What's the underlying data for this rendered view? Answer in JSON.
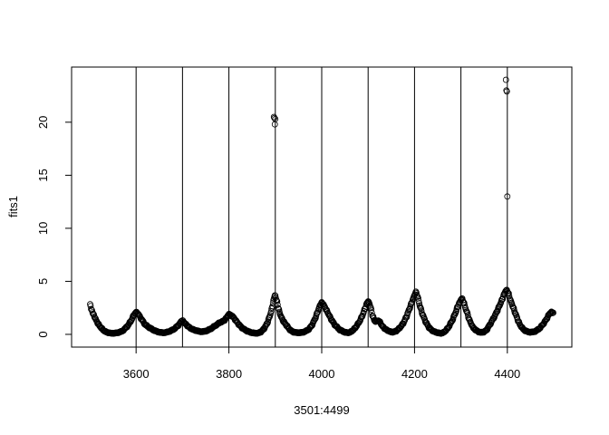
{
  "chart_data": {
    "type": "scatter",
    "title": "",
    "xlabel": "3501:4499",
    "ylabel": "fits1",
    "xlim": [
      3461,
      4539
    ],
    "ylim": [
      -1.2,
      25.2
    ],
    "x_ticks": [
      3600,
      3800,
      4000,
      4200,
      4400
    ],
    "y_ticks": [
      0,
      5,
      10,
      15,
      20
    ],
    "grid": false,
    "legend": "none",
    "point_color": "#000000",
    "marker": "open-circle",
    "vertical_lines": [
      3600,
      3700,
      3800,
      3900,
      4000,
      4100,
      4200,
      4300,
      4400
    ],
    "profile_knots": [
      [
        3501,
        2.8
      ],
      [
        3504,
        2.3
      ],
      [
        3508,
        1.9
      ],
      [
        3512,
        1.5
      ],
      [
        3518,
        1.0
      ],
      [
        3525,
        0.6
      ],
      [
        3532,
        0.3
      ],
      [
        3540,
        0.15
      ],
      [
        3550,
        0.1
      ],
      [
        3560,
        0.15
      ],
      [
        3570,
        0.3
      ],
      [
        3580,
        0.7
      ],
      [
        3588,
        1.2
      ],
      [
        3595,
        1.8
      ],
      [
        3600,
        2.1
      ],
      [
        3605,
        1.9
      ],
      [
        3612,
        1.4
      ],
      [
        3620,
        0.9
      ],
      [
        3630,
        0.6
      ],
      [
        3640,
        0.35
      ],
      [
        3650,
        0.2
      ],
      [
        3660,
        0.15
      ],
      [
        3670,
        0.25
      ],
      [
        3680,
        0.45
      ],
      [
        3690,
        0.8
      ],
      [
        3697,
        1.2
      ],
      [
        3700,
        1.3
      ],
      [
        3705,
        1.05
      ],
      [
        3712,
        0.75
      ],
      [
        3720,
        0.5
      ],
      [
        3730,
        0.35
      ],
      [
        3740,
        0.25
      ],
      [
        3750,
        0.3
      ],
      [
        3760,
        0.5
      ],
      [
        3770,
        0.8
      ],
      [
        3780,
        1.1
      ],
      [
        3790,
        1.3
      ],
      [
        3795,
        1.6
      ],
      [
        3800,
        1.9
      ],
      [
        3808,
        1.7
      ],
      [
        3815,
        1.3
      ],
      [
        3822,
        0.9
      ],
      [
        3830,
        0.55
      ],
      [
        3840,
        0.3
      ],
      [
        3850,
        0.15
      ],
      [
        3860,
        0.1
      ],
      [
        3868,
        0.2
      ],
      [
        3875,
        0.5
      ],
      [
        3882,
        1.0
      ],
      [
        3888,
        1.7
      ],
      [
        3893,
        2.5
      ],
      [
        3896,
        3.2
      ],
      [
        3899,
        3.7
      ],
      [
        3903,
        3.2
      ],
      [
        3907,
        2.4
      ],
      [
        3912,
        1.7
      ],
      [
        3918,
        1.2
      ],
      [
        3925,
        0.8
      ],
      [
        3932,
        0.4
      ],
      [
        3940,
        0.2
      ],
      [
        3950,
        0.15
      ],
      [
        3960,
        0.2
      ],
      [
        3970,
        0.4
      ],
      [
        3978,
        0.8
      ],
      [
        3985,
        1.4
      ],
      [
        3991,
        2.1
      ],
      [
        3996,
        2.7
      ],
      [
        4000,
        3.0
      ],
      [
        4004,
        2.8
      ],
      [
        4010,
        2.3
      ],
      [
        4016,
        1.8
      ],
      [
        4022,
        1.3
      ],
      [
        4030,
        0.8
      ],
      [
        4040,
        0.4
      ],
      [
        4050,
        0.2
      ],
      [
        4058,
        0.15
      ],
      [
        4065,
        0.3
      ],
      [
        4072,
        0.6
      ],
      [
        4080,
        1.1
      ],
      [
        4087,
        1.7
      ],
      [
        4093,
        2.4
      ],
      [
        4098,
        3.0
      ],
      [
        4101,
        3.1
      ],
      [
        4105,
        2.6
      ],
      [
        4110,
        1.7
      ],
      [
        4115,
        1.2
      ],
      [
        4120,
        1.3
      ],
      [
        4125,
        1.2
      ],
      [
        4130,
        0.8
      ],
      [
        4137,
        0.5
      ],
      [
        4145,
        0.3
      ],
      [
        4152,
        0.2
      ],
      [
        4160,
        0.3
      ],
      [
        4168,
        0.6
      ],
      [
        4175,
        1.0
      ],
      [
        4182,
        1.6
      ],
      [
        4188,
        2.3
      ],
      [
        4194,
        3.0
      ],
      [
        4199,
        3.6
      ],
      [
        4203,
        4.0
      ],
      [
        4207,
        3.5
      ],
      [
        4212,
        2.6
      ],
      [
        4218,
        1.8
      ],
      [
        4225,
        1.1
      ],
      [
        4232,
        0.6
      ],
      [
        4240,
        0.3
      ],
      [
        4250,
        0.15
      ],
      [
        4258,
        0.1
      ],
      [
        4265,
        0.25
      ],
      [
        4272,
        0.6
      ],
      [
        4280,
        1.2
      ],
      [
        4287,
        1.9
      ],
      [
        4293,
        2.6
      ],
      [
        4298,
        3.1
      ],
      [
        4302,
        3.4
      ],
      [
        4306,
        3.0
      ],
      [
        4312,
        2.2
      ],
      [
        4318,
        1.4
      ],
      [
        4323,
        0.9
      ],
      [
        4327,
        0.6
      ],
      [
        4332,
        0.4
      ],
      [
        4340,
        0.2
      ],
      [
        4348,
        0.2
      ],
      [
        4355,
        0.4
      ],
      [
        4362,
        0.9
      ],
      [
        4370,
        1.5
      ],
      [
        4377,
        2.1
      ],
      [
        4383,
        2.7
      ],
      [
        4389,
        3.3
      ],
      [
        4394,
        3.9
      ],
      [
        4398,
        4.2
      ],
      [
        4402,
        3.9
      ],
      [
        4407,
        3.2
      ],
      [
        4412,
        2.6
      ],
      [
        4418,
        1.9
      ],
      [
        4424,
        1.2
      ],
      [
        4430,
        0.7
      ],
      [
        4438,
        0.35
      ],
      [
        4448,
        0.2
      ],
      [
        4458,
        0.25
      ],
      [
        4468,
        0.5
      ],
      [
        4476,
        0.9
      ],
      [
        4484,
        1.4
      ],
      [
        4490,
        1.9
      ],
      [
        4495,
        2.1
      ],
      [
        4499,
        2.0
      ]
    ],
    "outliers": [
      [
        3897,
        20.5
      ],
      [
        3898,
        20.4
      ],
      [
        3899,
        19.8
      ],
      [
        3900,
        20.3
      ],
      [
        4397,
        24.0
      ],
      [
        4398,
        23.0
      ],
      [
        4399,
        22.9
      ],
      [
        4400,
        13.0
      ]
    ]
  }
}
